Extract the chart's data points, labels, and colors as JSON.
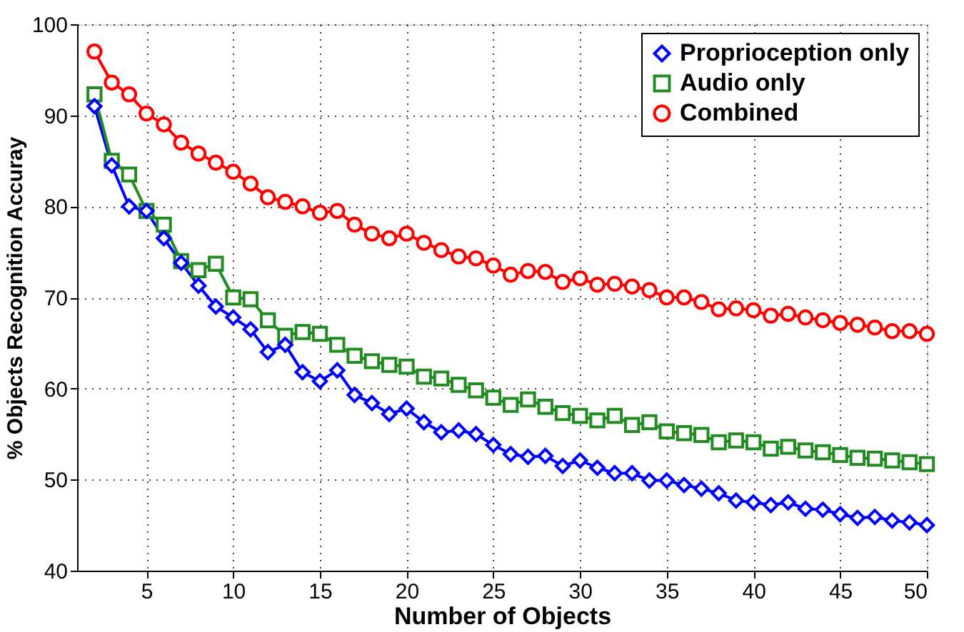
{
  "chart_data": {
    "type": "line",
    "xlabel": "Number of Objects",
    "ylabel": "% Objects Recognition Accuray",
    "x": [
      2,
      3,
      4,
      5,
      6,
      7,
      8,
      9,
      10,
      11,
      12,
      13,
      14,
      15,
      16,
      17,
      18,
      19,
      20,
      21,
      22,
      23,
      24,
      25,
      26,
      27,
      28,
      29,
      30,
      31,
      32,
      33,
      34,
      35,
      36,
      37,
      38,
      39,
      40,
      41,
      42,
      43,
      44,
      45,
      46,
      47,
      48,
      49,
      50
    ],
    "xlim": [
      1,
      50
    ],
    "xticks": [
      5,
      10,
      15,
      20,
      25,
      30,
      35,
      40,
      45,
      50
    ],
    "ylim": [
      40,
      100
    ],
    "yticks": [
      40,
      50,
      60,
      70,
      80,
      90,
      100
    ],
    "grid": true,
    "legend": "top right",
    "line_style": "solid",
    "series": [
      {
        "name": "Proprioception only",
        "color": "#0000ff",
        "marker": "diamond",
        "values": [
          91,
          84.5,
          80,
          79.5,
          76.5,
          73.8,
          71.3,
          69,
          67.8,
          66.5,
          64,
          64.8,
          61.8,
          60.8,
          62,
          59.3,
          58.4,
          57.2,
          57.8,
          56.3,
          55.2,
          55.4,
          55,
          53.8,
          52.8,
          52.5,
          52.6,
          51.5,
          52.1,
          51.3,
          50.7,
          50.7,
          49.9,
          49.9,
          49.4,
          49,
          48.5,
          47.7,
          47.5,
          47.2,
          47.5,
          46.8,
          46.7,
          46.2,
          45.8,
          45.9,
          45.5,
          45.3,
          45
        ]
      },
      {
        "name": "Audio only",
        "color": "#228b22",
        "marker": "square",
        "values": [
          92.3,
          85,
          83.5,
          79.5,
          78,
          74,
          73,
          73.7,
          70,
          69.8,
          67.5,
          65.8,
          66.2,
          66,
          64.8,
          63.6,
          63,
          62.6,
          62.4,
          61.3,
          61.1,
          60.4,
          59.8,
          59,
          58.2,
          58.8,
          58,
          57.3,
          57,
          56.5,
          57,
          56,
          56.3,
          55.3,
          55.1,
          54.9,
          54.1,
          54.3,
          54.1,
          53.4,
          53.6,
          53.2,
          53,
          52.7,
          52.4,
          52.3,
          52.1,
          51.9,
          51.7
        ]
      },
      {
        "name": "Combined",
        "color": "#ff0000",
        "marker": "circle",
        "values": [
          97,
          93.6,
          92.3,
          90.2,
          89,
          87,
          85.8,
          84.8,
          83.8,
          82.5,
          81,
          80.5,
          80,
          79.3,
          79.5,
          78,
          77,
          76.5,
          77,
          76,
          75.2,
          74.5,
          74.3,
          73.5,
          72.5,
          72.9,
          72.8,
          71.7,
          72.1,
          71.4,
          71.5,
          71.2,
          70.8,
          70,
          70,
          69.5,
          68.7,
          68.8,
          68.6,
          68,
          68.2,
          67.8,
          67.5,
          67.2,
          67,
          66.7,
          66.3,
          66.3,
          66
        ]
      }
    ]
  }
}
